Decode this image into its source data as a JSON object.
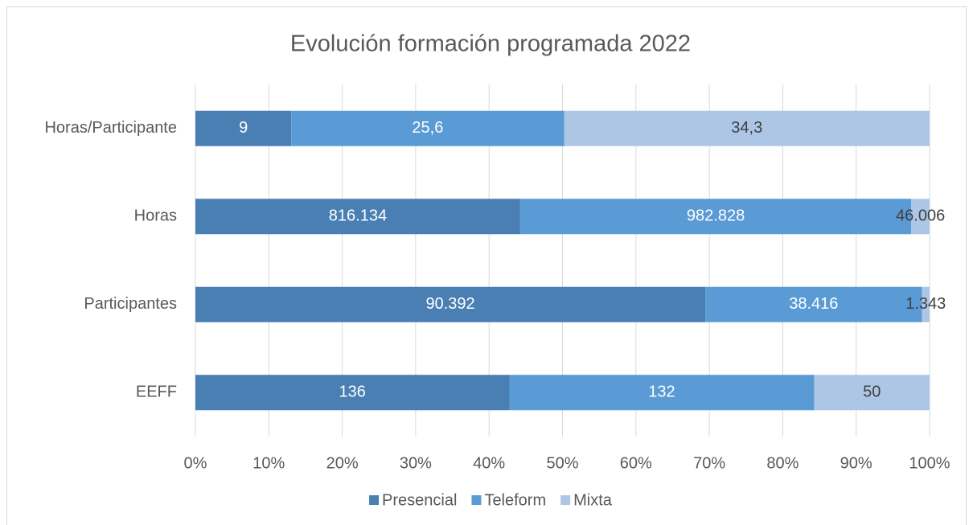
{
  "chart_data": {
    "type": "bar",
    "orientation": "horizontal",
    "stacking": "percent",
    "title": "Evolución formación programada 2022",
    "categories": [
      "Horas/Participante",
      "Horas",
      "Participantes",
      "EEFF"
    ],
    "series": [
      {
        "name": "Presencial",
        "color": "#4a7fb3",
        "values": [
          9,
          816134,
          90392,
          136
        ],
        "value_labels": [
          "9",
          "816.134",
          "90.392",
          "136"
        ]
      },
      {
        "name": "Teleform",
        "color": "#5b9bd5",
        "values": [
          25.6,
          982828,
          38416,
          132
        ],
        "value_labels": [
          "25,6",
          "982.828",
          "38.416",
          "132"
        ]
      },
      {
        "name": "Mixta",
        "color": "#adc6e6",
        "values": [
          34.3,
          46006,
          1343,
          50
        ],
        "value_labels": [
          "34,3",
          "46.006",
          "1.343",
          "50"
        ]
      }
    ],
    "xlim": [
      0,
      100
    ],
    "xticks": [
      {
        "value": 0,
        "label": "0%"
      },
      {
        "value": 10,
        "label": "10%"
      },
      {
        "value": 20,
        "label": "20%"
      },
      {
        "value": 30,
        "label": "30%"
      },
      {
        "value": 40,
        "label": "40%"
      },
      {
        "value": 50,
        "label": "50%"
      },
      {
        "value": 60,
        "label": "60%"
      },
      {
        "value": 70,
        "label": "70%"
      },
      {
        "value": 80,
        "label": "80%"
      },
      {
        "value": 90,
        "label": "90%"
      },
      {
        "value": 100,
        "label": "100%"
      }
    ],
    "grid": true,
    "legend": "bottom"
  }
}
